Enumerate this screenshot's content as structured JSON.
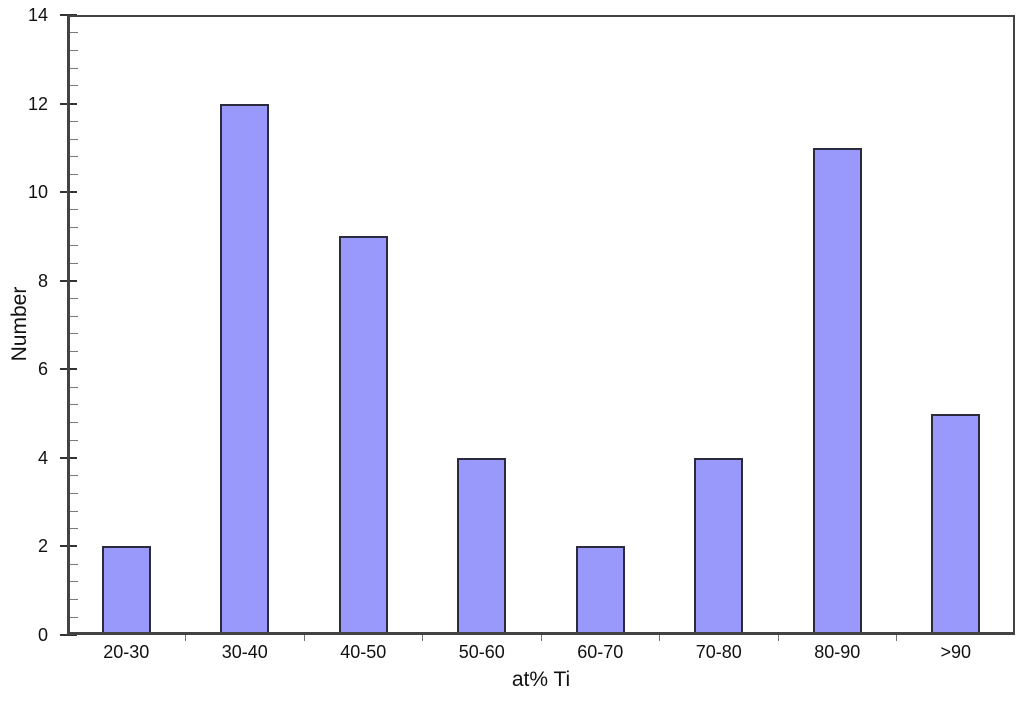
{
  "chart_data": {
    "type": "bar",
    "categories": [
      "20-30",
      "30-40",
      "40-50",
      "50-60",
      "60-70",
      "70-80",
      "80-90",
      ">90"
    ],
    "values": [
      2,
      12,
      9,
      4,
      2,
      4,
      11,
      5
    ],
    "xlabel": "at% Ti",
    "ylabel": "Number",
    "ylim": [
      0,
      14
    ],
    "y_major_ticks": [
      0,
      2,
      4,
      6,
      8,
      10,
      12,
      14
    ],
    "y_minor_step": 0.4,
    "grid": "off",
    "legend": "none",
    "layout": {
      "plot_frame": "full-box",
      "x_ticks": "category-boundaries-outside",
      "y_ticks": "majors-crossing-minors-inside"
    },
    "colors": {
      "bar_fill": "#9999fb",
      "bar_border": "#2b2b3d",
      "axis_frame": "#434343",
      "tick_major": "#333333",
      "tick_minor": "#7a7a7a",
      "text": "#111111",
      "background": "#ffffff"
    }
  }
}
